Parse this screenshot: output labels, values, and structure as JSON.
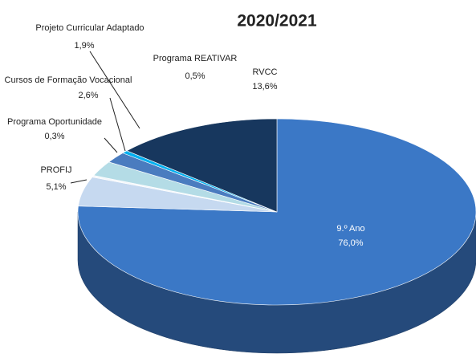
{
  "chart_data": {
    "type": "pie3d",
    "title": "2020/2021",
    "categories": [
      "9.º Ano",
      "PROFIJ",
      "Programa Oportunidade",
      "Cursos de Formação Vocacional",
      "Projeto Curricular Adaptado",
      "Programa REATIVAR",
      "RVCC"
    ],
    "values": [
      76.0,
      5.1,
      0.3,
      2.6,
      1.9,
      0.5,
      13.6
    ],
    "value_labels": [
      "76,0%",
      "5,1%",
      "0,3%",
      "2,6%",
      "1,9%",
      "0,5%",
      "13,6%"
    ],
    "colors": [
      "#3b78c6",
      "#c6d9f0",
      "#f4f7fb",
      "#b4dce6",
      "#4a7cbf",
      "#00b0f0",
      "#17375e"
    ]
  }
}
